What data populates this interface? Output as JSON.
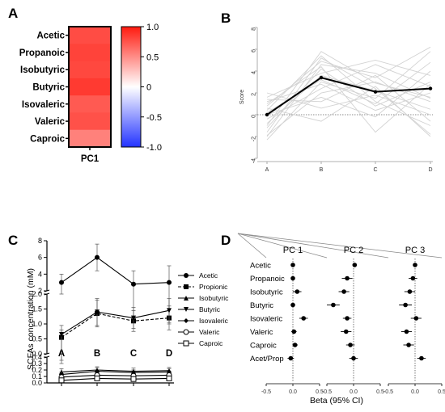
{
  "panels": {
    "a": "A",
    "b": "B",
    "c": "C",
    "d": "D"
  },
  "chart_data": [
    {
      "panel": "A",
      "type": "heatmap",
      "columns": [
        "PC1"
      ],
      "rows": [
        "Acetic",
        "Propanoic",
        "Isobutyric",
        "Butyric",
        "Isovaleric",
        "Valeric",
        "Caproic"
      ],
      "values": [
        0.78,
        0.82,
        0.8,
        0.86,
        0.72,
        0.76,
        0.55
      ],
      "colorbar": {
        "min": -1.0,
        "max": 1.0,
        "ticks": [
          "1.0",
          "0.5",
          "0",
          "-0.5",
          "-1.0"
        ],
        "colors": {
          "neg": "#2333ff",
          "mid": "#ffffff",
          "pos": "#ff1a0f"
        }
      }
    },
    {
      "panel": "B",
      "type": "line",
      "ylabel": "Score",
      "categories": [
        "A",
        "B",
        "C",
        "D"
      ],
      "ylim": [
        -4,
        8
      ],
      "yticks": [
        "-4",
        "-2",
        "0",
        "2",
        "4",
        "6",
        "8"
      ],
      "reference_line": 0,
      "mean_series": [
        0.0,
        3.4,
        2.1,
        2.4
      ],
      "individual_series": [
        [
          -2.3,
          3.0,
          1.5,
          5.8
        ],
        [
          -2.0,
          4.6,
          3.8,
          1.5
        ],
        [
          -1.6,
          5.2,
          2.4,
          -1.8
        ],
        [
          -1.2,
          4.2,
          0.8,
          3.0
        ],
        [
          -0.8,
          3.6,
          2.2,
          0.5
        ],
        [
          -0.4,
          2.4,
          4.6,
          2.6
        ],
        [
          0.0,
          1.6,
          -0.2,
          4.0
        ],
        [
          0.4,
          5.4,
          1.2,
          -1.0
        ],
        [
          0.8,
          4.9,
          3.4,
          6.2
        ],
        [
          1.2,
          2.8,
          0.4,
          2.0
        ],
        [
          1.6,
          3.8,
          5.0,
          3.6
        ],
        [
          2.0,
          0.6,
          1.8,
          0.0
        ],
        [
          -1.9,
          2.0,
          3.0,
          1.2
        ],
        [
          0.6,
          -0.6,
          2.6,
          -2.0
        ],
        [
          1.0,
          4.4,
          -1.6,
          2.8
        ],
        [
          -1.0,
          5.8,
          2.9,
          1.6
        ],
        [
          0.2,
          3.2,
          1.0,
          4.8
        ],
        [
          1.4,
          1.2,
          3.6,
          -0.6
        ]
      ]
    },
    {
      "panel": "C",
      "type": "line",
      "ylabel": "SCFAs concentration (mM)",
      "categories": [
        "A",
        "B",
        "C",
        "D"
      ],
      "series": [
        {
          "name": "Acetic",
          "marker": "filled-circle",
          "line": "solid",
          "values": [
            3.0,
            6.0,
            2.8,
            3.0
          ],
          "err": [
            1.0,
            1.6,
            1.6,
            2.0
          ]
        },
        {
          "name": "Propionic",
          "marker": "filled-square",
          "line": "dashed",
          "values": [
            0.55,
            1.35,
            1.1,
            1.2
          ],
          "err": [
            0.25,
            0.45,
            0.35,
            0.4
          ]
        },
        {
          "name": "Isobutyric",
          "marker": "filled-triangle",
          "line": "solid",
          "values": [
            0.17,
            0.2,
            0.18,
            0.19
          ],
          "err": [
            0.05,
            0.05,
            0.05,
            0.05
          ]
        },
        {
          "name": "Butyric",
          "marker": "filled-triangle-down",
          "line": "solid",
          "values": [
            0.65,
            1.4,
            1.2,
            1.45
          ],
          "err": [
            0.3,
            0.45,
            0.35,
            0.4
          ]
        },
        {
          "name": "Isovaleric",
          "marker": "filled-diamond",
          "line": "solid",
          "values": [
            0.13,
            0.18,
            0.16,
            0.17
          ],
          "err": [
            0.04,
            0.05,
            0.04,
            0.05
          ]
        },
        {
          "name": "Valeric",
          "marker": "open-circle",
          "line": "solid",
          "values": [
            0.09,
            0.12,
            0.11,
            0.12
          ],
          "err": [
            0.03,
            0.04,
            0.03,
            0.04
          ]
        },
        {
          "name": "Caproic",
          "marker": "open-square",
          "line": "solid",
          "values": [
            0.04,
            0.07,
            0.06,
            0.07
          ],
          "err": [
            0.02,
            0.03,
            0.02,
            0.03
          ]
        }
      ],
      "ysegments": [
        {
          "range": [
            0.0,
            0.4
          ],
          "ticks": [
            "0.0",
            "0.1",
            "0.2",
            "0.3",
            "0.4"
          ]
        },
        {
          "range": [
            0.0,
            2.0
          ],
          "ticks": [
            "0.0",
            "0.5",
            "1.0",
            "1.5",
            "2.0"
          ]
        },
        {
          "range": [
            2,
            8
          ],
          "ticks": [
            "2",
            "4",
            "6",
            "8"
          ]
        }
      ],
      "timepoint_labels": [
        "A",
        "B",
        "C",
        "D"
      ]
    },
    {
      "panel": "D",
      "type": "scatter",
      "subtype": "forest",
      "xlabel": "Beta (95% CI)",
      "rows": [
        "Acetic",
        "Propanoic",
        "Isobutyric",
        "Butyric",
        "Isovaleric",
        "Valeric",
        "Caproic",
        "Acet/Prop"
      ],
      "xticks": [
        "-0.5",
        "0.0",
        "0.5"
      ],
      "xlim": [
        -0.5,
        0.5
      ],
      "panels": [
        {
          "title": "PC 1",
          "beta": [
            0.0,
            0.0,
            0.08,
            0.0,
            0.2,
            0.02,
            0.04,
            -0.04
          ],
          "lo": [
            -0.02,
            -0.02,
            0.0,
            -0.04,
            0.12,
            -0.03,
            -0.01,
            -0.1
          ],
          "hi": [
            0.02,
            0.02,
            0.16,
            0.04,
            0.28,
            0.07,
            0.09,
            0.02
          ]
        },
        {
          "title": "PC 2",
          "beta": [
            0.02,
            -0.12,
            -0.18,
            -0.38,
            -0.12,
            -0.14,
            -0.06,
            0.0
          ],
          "lo": [
            -0.02,
            -0.22,
            -0.28,
            -0.5,
            -0.2,
            -0.24,
            -0.14,
            -0.08
          ],
          "hi": [
            0.06,
            -0.02,
            -0.08,
            -0.26,
            -0.04,
            -0.04,
            0.02,
            0.08
          ]
        },
        {
          "title": "PC 3",
          "beta": [
            0.0,
            -0.04,
            -0.1,
            -0.18,
            0.02,
            -0.16,
            -0.12,
            0.12
          ],
          "lo": [
            -0.04,
            -0.12,
            -0.2,
            -0.3,
            -0.08,
            -0.26,
            -0.22,
            0.04
          ],
          "hi": [
            0.04,
            0.04,
            0.0,
            -0.06,
            0.12,
            -0.06,
            -0.02,
            0.2
          ]
        }
      ]
    }
  ]
}
